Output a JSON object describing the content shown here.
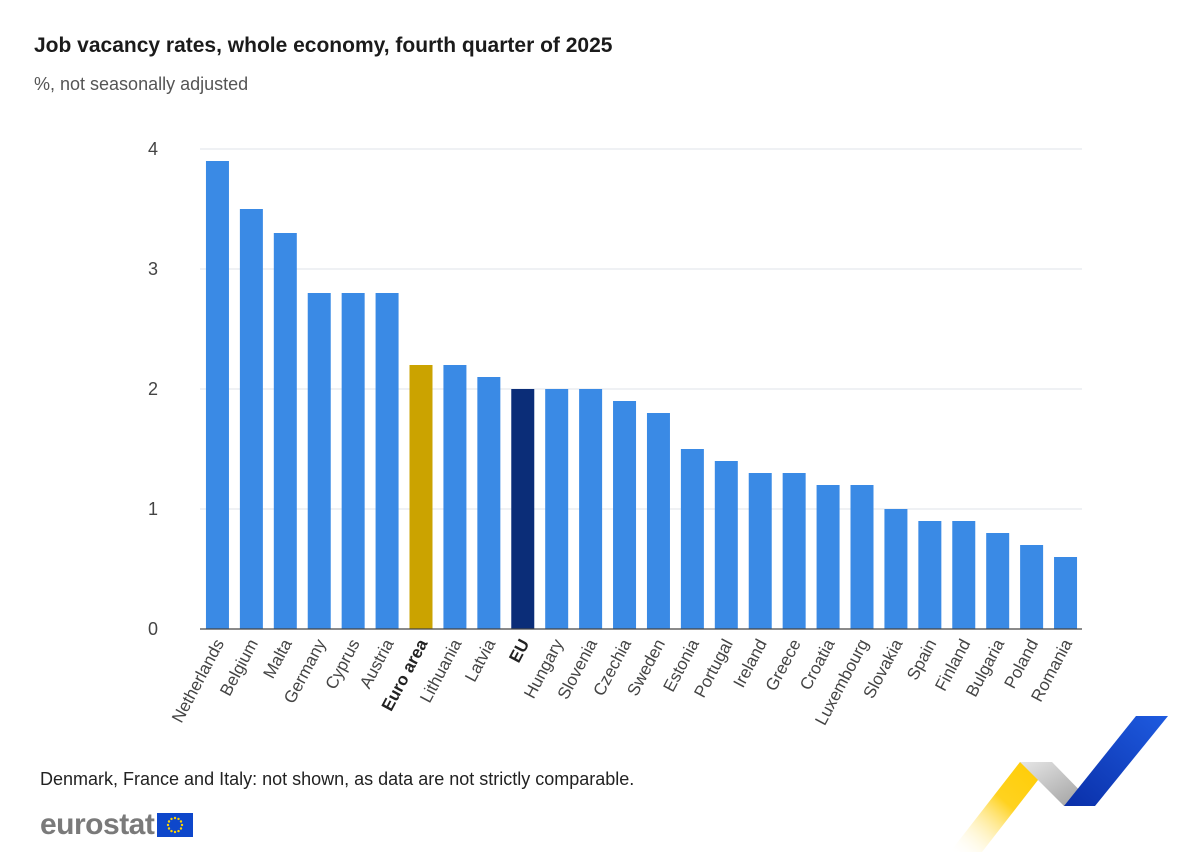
{
  "title": "Job vacancy rates, whole economy, fourth quarter of 2025",
  "subtitle": "%, not seasonally adjusted",
  "note": "Denmark, France and Italy: not shown, as data are not strictly comparable.",
  "logo": {
    "text": "eurostat",
    "flag_icon": "eu-flag-icon"
  },
  "colors": {
    "country": "#3a8ae5",
    "euro_area": "#cba300",
    "eu": "#0b2d78",
    "grid": "#dfe3ea"
  },
  "chart_data": {
    "type": "bar",
    "title": "Job vacancy rates, whole economy, fourth quarter of 2025",
    "subtitle": "%, not seasonally adjusted",
    "ylim": [
      0,
      4
    ],
    "yticks": [
      0,
      1,
      2,
      3,
      4
    ],
    "grid": true,
    "categories": [
      "Netherlands",
      "Belgium",
      "Malta",
      "Germany",
      "Cyprus",
      "Austria",
      "Euro area",
      "Lithuania",
      "Latvia",
      "EU",
      "Hungary",
      "Slovenia",
      "Czechia",
      "Sweden",
      "Estonia",
      "Portugal",
      "Ireland",
      "Greece",
      "Croatia",
      "Luxembourg",
      "Slovakia",
      "Spain",
      "Finland",
      "Bulgaria",
      "Poland",
      "Romania"
    ],
    "values": [
      3.9,
      3.5,
      3.3,
      2.8,
      2.8,
      2.8,
      2.2,
      2.2,
      2.1,
      2.0,
      2.0,
      2.0,
      1.9,
      1.8,
      1.5,
      1.4,
      1.3,
      1.3,
      1.2,
      1.2,
      1.0,
      0.9,
      0.9,
      0.8,
      0.7,
      0.6
    ],
    "highlight": {
      "Euro area": "euro_area",
      "EU": "eu"
    }
  }
}
